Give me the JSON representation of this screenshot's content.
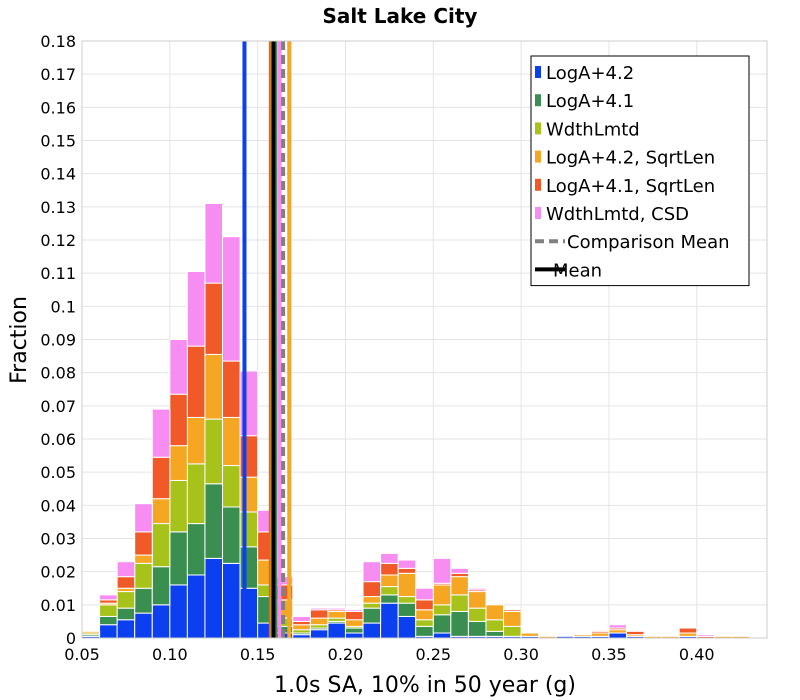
{
  "chart_data": {
    "type": "bar",
    "stacked": true,
    "title": "Salt Lake City",
    "xlabel": "1.0s SA, 10% in 50 year (g)",
    "ylabel": "Fraction",
    "xlim": [
      0.05,
      0.44
    ],
    "ylim": [
      0,
      0.18
    ],
    "grid": true,
    "legend_position": "top-right",
    "bin_width": 0.01,
    "x_ticks": [
      "0.05",
      "0.10",
      "0.15",
      "0.20",
      "0.25",
      "0.30",
      "0.35",
      "0.40"
    ],
    "y_ticks": [
      "0",
      "0.01",
      "0.02",
      "0.03",
      "0.04",
      "0.05",
      "0.06",
      "0.07",
      "0.08",
      "0.09",
      "0.1",
      "0.11",
      "0.12",
      "0.13",
      "0.14",
      "0.15",
      "0.16",
      "0.17",
      "0.18"
    ],
    "bin_starts": [
      0.05,
      0.06,
      0.07,
      0.08,
      0.09,
      0.1,
      0.11,
      0.12,
      0.13,
      0.14,
      0.15,
      0.16,
      0.17,
      0.18,
      0.19,
      0.2,
      0.21,
      0.22,
      0.23,
      0.24,
      0.25,
      0.26,
      0.27,
      0.28,
      0.29,
      0.3,
      0.31,
      0.32,
      0.33,
      0.34,
      0.35,
      0.36,
      0.37,
      0.38,
      0.39,
      0.4,
      0.41,
      0.42,
      0.43
    ],
    "series": [
      {
        "name": "LogA+4.2",
        "color": "#0b3ff0",
        "values": [
          0.0005,
          0.004,
          0.0055,
          0.0075,
          0.01,
          0.016,
          0.019,
          0.024,
          0.0225,
          0.015,
          0.0045,
          0.0015,
          0.001,
          0.0025,
          0.0045,
          0.0015,
          0.0045,
          0.0105,
          0.0065,
          0.0005,
          0.0015,
          0.0005,
          0.0005,
          0.0005,
          0.0005,
          0.0005,
          0,
          0.0005,
          0.0005,
          0.0005,
          0.0015,
          0.0005,
          0,
          0,
          0.0005,
          0,
          0,
          0,
          0
        ]
      },
      {
        "name": "LogA+4.1",
        "color": "#3a8f50",
        "values": [
          0.0005,
          0.0025,
          0.0035,
          0.0075,
          0.0115,
          0.016,
          0.0155,
          0.0225,
          0.017,
          0.0125,
          0.008,
          0.002,
          0.0005,
          0.0005,
          0.0005,
          0.0015,
          0.0045,
          0.0025,
          0.004,
          0.003,
          0.0055,
          0.0075,
          0.0045,
          0.0015,
          0,
          0,
          0,
          0,
          0,
          0,
          0,
          0,
          0,
          0,
          0,
          0,
          0,
          0,
          0
        ]
      },
      {
        "name": "WdthLmtd",
        "color": "#a8c21c",
        "values": [
          0.0005,
          0.0035,
          0.005,
          0.0075,
          0.013,
          0.0155,
          0.018,
          0.0195,
          0.0125,
          0.0105,
          0.0035,
          0.0025,
          0.001,
          0.001,
          0.001,
          0.0005,
          0.0015,
          0.0025,
          0.002,
          0.002,
          0.003,
          0.005,
          0.004,
          0.0035,
          0.003,
          0,
          0,
          0,
          0,
          0,
          0,
          0,
          0,
          0,
          0,
          0,
          0,
          0,
          0
        ]
      },
      {
        "name": "LogA+4.2, SqrtLen",
        "color": "#f5a623",
        "values": [
          0.0005,
          0.0005,
          0.001,
          0.0025,
          0.0075,
          0.0105,
          0.014,
          0.0195,
          0.0145,
          0.0105,
          0.0075,
          0.0055,
          0.0015,
          0.002,
          0.002,
          0.002,
          0.002,
          0.0035,
          0.007,
          0.003,
          0.006,
          0.0055,
          0.005,
          0.0045,
          0.0045,
          0.001,
          0.0005,
          0,
          0.0005,
          0.001,
          0.001,
          0.0005,
          0.0005,
          0.0005,
          0.001,
          0,
          0.0005,
          0.0005,
          0
        ]
      },
      {
        "name": "LogA+4.1, SqrtLen",
        "color": "#f05a28",
        "values": [
          0,
          0.001,
          0.0035,
          0.007,
          0.0125,
          0.0155,
          0.0215,
          0.0215,
          0.017,
          0.0125,
          0.0085,
          0.0045,
          0.001,
          0.0025,
          0.0005,
          0.0025,
          0.0045,
          0.0035,
          0.0015,
          0.003,
          0.0005,
          0.001,
          0.0005,
          0,
          0.0005,
          0,
          0,
          0,
          0,
          0.0005,
          0.0005,
          0.001,
          0,
          0,
          0.0015,
          0.0005,
          0,
          0,
          0
        ]
      },
      {
        "name": "WdthLmtd, CSD",
        "color": "#f78cf1",
        "values": [
          0,
          0.0015,
          0.0045,
          0.0085,
          0.0145,
          0.0165,
          0.0225,
          0.024,
          0.0375,
          0.0195,
          0.0065,
          0.0025,
          0.0015,
          0.0005,
          0.0005,
          0.0005,
          0.006,
          0.003,
          0.0025,
          0.0035,
          0.0075,
          0.0015,
          0.0005,
          0,
          0,
          0,
          0,
          0,
          0,
          0,
          0.001,
          0,
          0,
          0,
          0,
          0.0005,
          0,
          0,
          0
        ]
      }
    ],
    "reference_lines": [
      {
        "name": "LogA+4.2 mean",
        "color": "#0b3ff0",
        "x": 0.1425,
        "style": "solid"
      },
      {
        "name": "LogA+4.1, SqrtLen mean",
        "color": "#f05a28",
        "x": 0.1575,
        "style": "solid"
      },
      {
        "name": "WdthLmtd mean",
        "color": "#a8c21c",
        "x": 0.1585,
        "style": "solid"
      },
      {
        "name": "LogA+4.1 mean",
        "color": "#3a8f50",
        "x": 0.16,
        "style": "solid"
      },
      {
        "name": "WdthLmtd, CSD mean",
        "color": "#f78cf1",
        "x": 0.1625,
        "style": "solid"
      },
      {
        "name": "LogA+4.2, SqrtLen mean",
        "color": "#f5a623",
        "x": 0.168,
        "style": "solid"
      },
      {
        "name": "Mean",
        "color": "#000000",
        "x": 0.159,
        "style": "solid"
      },
      {
        "name": "Comparison Mean",
        "color": "#808080",
        "x": 0.1645,
        "style": "dashed"
      }
    ],
    "legend": [
      {
        "label": "LogA+4.2",
        "color": "#0b3ff0",
        "kind": "box"
      },
      {
        "label": "LogA+4.1",
        "color": "#3a8f50",
        "kind": "box"
      },
      {
        "label": "WdthLmtd",
        "color": "#a8c21c",
        "kind": "box"
      },
      {
        "label": "LogA+4.2, SqrtLen",
        "color": "#f5a623",
        "kind": "box"
      },
      {
        "label": "LogA+4.1, SqrtLen",
        "color": "#f05a28",
        "kind": "box"
      },
      {
        "label": "WdthLmtd, CSD",
        "color": "#f78cf1",
        "kind": "box"
      },
      {
        "label": "Comparison Mean",
        "color": "#808080",
        "kind": "dashed"
      },
      {
        "label": "Mean",
        "color": "#000000",
        "kind": "line"
      }
    ]
  }
}
